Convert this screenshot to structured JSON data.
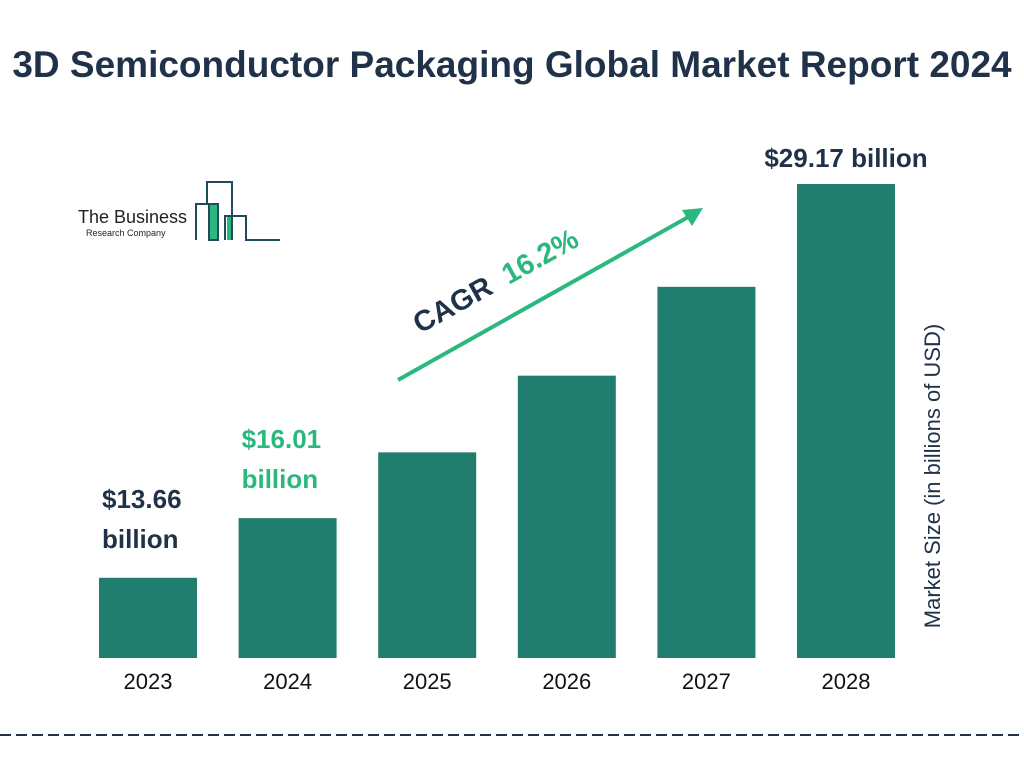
{
  "chart_data": {
    "type": "bar",
    "title": "3D Semiconductor Packaging Global Market Report 2024",
    "categories": [
      "2023",
      "2024",
      "2025",
      "2026",
      "2027",
      "2028"
    ],
    "values": [
      13.66,
      16.01,
      18.6,
      21.62,
      25.12,
      29.17
    ],
    "data_labels": [
      {
        "index": 0,
        "line1": "$13.66",
        "line2": "billion",
        "color": "#1f3249"
      },
      {
        "index": 1,
        "line1": "$16.01",
        "line2": "billion",
        "color": "#2bb87e"
      },
      {
        "index": 5,
        "line1": "$29.17 billion",
        "line2": "",
        "color": "#1f3249"
      }
    ],
    "ylabel": "Market Size (in billions of USD)",
    "xlabel": "",
    "ylim": [
      10.5,
      29.17
    ],
    "grid": false,
    "annotation": {
      "cagr_label": "CAGR",
      "cagr_value": "16.2%"
    },
    "colors": {
      "bar": "#217d6d",
      "title": "#1f3249",
      "accent": "#2bb87e",
      "dash": "#1f3249"
    }
  },
  "logo": {
    "line1": "The Business",
    "line2": "Research Company"
  }
}
